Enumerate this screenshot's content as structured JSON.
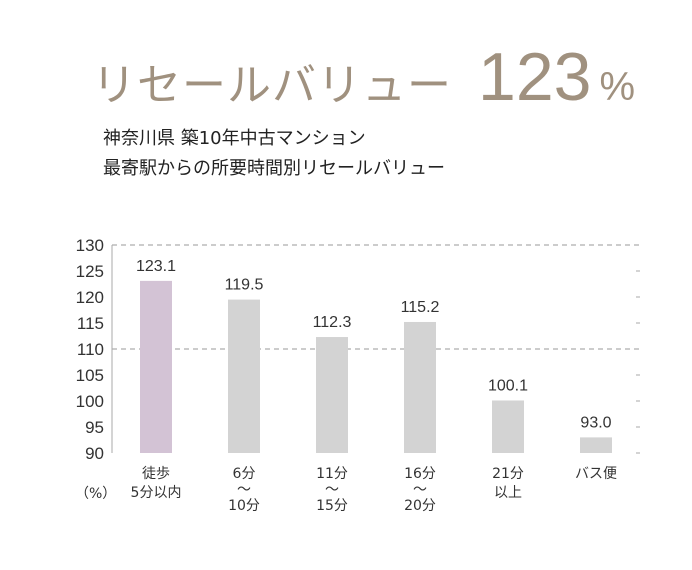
{
  "header": {
    "label": "リセールバリュー",
    "value": "123",
    "unit": "%",
    "color": "#a0917f"
  },
  "subtitle": {
    "line1": "神奈川県 築10年中古マンション",
    "line2": "最寄駅からの所要時間別リセールバリュー"
  },
  "y_unit_label": "（%）",
  "chart_data": {
    "type": "bar",
    "categories": [
      "徒歩\n5分以内",
      "6分\n～\n10分",
      "11分\n～\n15分",
      "16分\n～\n20分",
      "21分\n以上",
      "バス便"
    ],
    "values": [
      123.1,
      119.5,
      112.3,
      115.2,
      100.1,
      93.0
    ],
    "value_labels": [
      "123.1",
      "119.5",
      "112.3",
      "115.2",
      "100.1",
      "93.0"
    ],
    "ylim": [
      90,
      130
    ],
    "yticks": [
      90,
      95,
      100,
      105,
      110,
      115,
      120,
      125,
      130
    ],
    "dashed_gridlines": [
      110,
      130
    ],
    "highlight_index": 0,
    "colors": {
      "bar": "#d3d3d3",
      "highlight": "#d3c3d5",
      "grid": "#999999"
    },
    "xlabel": "",
    "ylabel": "（%）",
    "title": "",
    "legend": "none"
  }
}
